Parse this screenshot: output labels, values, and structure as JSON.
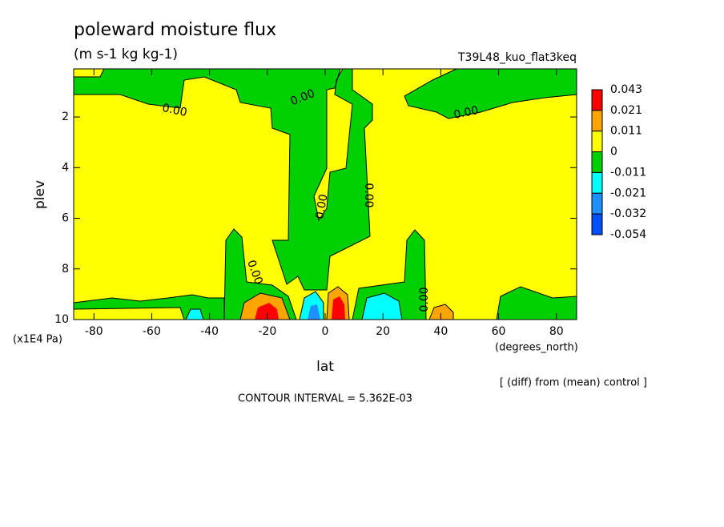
{
  "chart_data": {
    "type": "contour",
    "title": "poleward moisture flux",
    "subtitle": "(m s-1 kg kg-1)",
    "run_label": "T39L48_kuo_flat3keq",
    "xlabel": "lat",
    "x_units": "(degrees_north)",
    "ylabel": "plev",
    "y_units": "(x1E4 Pa)",
    "xlim": [
      -87,
      87
    ],
    "ylim": [
      10,
      0.1
    ],
    "xticks": [
      -80,
      -60,
      -40,
      -20,
      0,
      20,
      40,
      60,
      80
    ],
    "yticks": [
      2,
      4,
      6,
      8,
      10
    ],
    "levels": [
      0.043,
      0.021,
      0.011,
      0,
      -0.011,
      -0.021,
      -0.032,
      -0.054
    ],
    "colors": [
      "#ff0000",
      "#ffa500",
      "#ffff00",
      "#00d000",
      "#00ffff",
      "#1e90ff",
      "#0050ff"
    ],
    "contour_label": "0.00",
    "footnote": "[ (diff) from (mean) control ]",
    "contour_interval": "CONTOUR INTERVAL = 5.362E-03"
  }
}
